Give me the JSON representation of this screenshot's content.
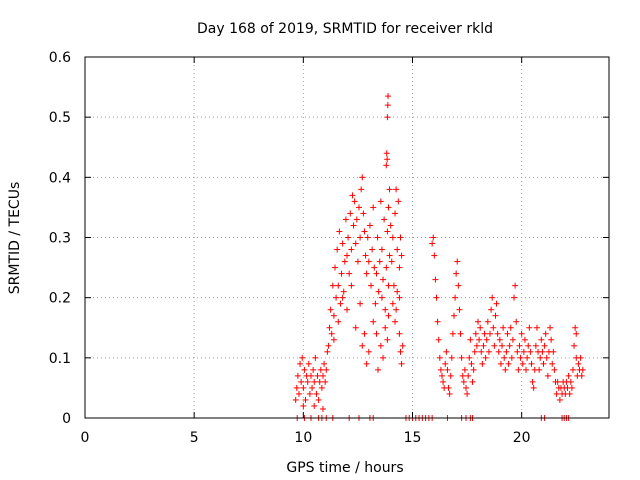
{
  "chart_data": {
    "type": "scatter",
    "title": "Day 168 of 2019, SRMTID for receiver rkld",
    "xlabel": "GPS time / hours",
    "ylabel": "SRMTID / TECUs",
    "xlim": [
      0,
      24
    ],
    "ylim": [
      0,
      0.6
    ],
    "x_ticks": [
      0,
      5,
      10,
      15,
      20
    ],
    "x_tick_labels": [
      "0",
      "5",
      "10",
      "15",
      "20"
    ],
    "y_ticks": [
      0,
      0.1,
      0.2,
      0.3,
      0.4,
      0.5,
      0.6
    ],
    "y_tick_labels": [
      "0",
      "0.1",
      "0.2",
      "0.3",
      "0.4",
      "0.5",
      "0.6"
    ],
    "grid": true,
    "marker": "+",
    "colors": {
      "series": "#ff0000",
      "axis": "#000000",
      "grid": "#a0a0a0"
    },
    "series": [
      {
        "name": "SRMTID",
        "points": [
          [
            9.65,
            0.03
          ],
          [
            9.7,
            0.05
          ],
          [
            9.75,
            0.07
          ],
          [
            9.8,
            0.04
          ],
          [
            9.85,
            0.09
          ],
          [
            9.9,
            0.06
          ],
          [
            9.95,
            0.1
          ],
          [
            10.0,
            0.05
          ],
          [
            10.05,
            0.08
          ],
          [
            10.1,
            0.03
          ],
          [
            10.15,
            0.07
          ],
          [
            10.2,
            0.06
          ],
          [
            10.25,
            0.09
          ],
          [
            10.3,
            0.04
          ],
          [
            10.35,
            0.07
          ],
          [
            10.4,
            0.05
          ],
          [
            10.45,
            0.08
          ],
          [
            10.5,
            0.06
          ],
          [
            10.55,
            0.1
          ],
          [
            10.6,
            0.04
          ],
          [
            10.65,
            0.07
          ],
          [
            10.7,
            0.03
          ],
          [
            10.75,
            0.06
          ],
          [
            10.8,
            0.08
          ],
          [
            10.85,
            0.05
          ],
          [
            10.9,
            0.07
          ],
          [
            10.95,
            0.09
          ],
          [
            11.0,
            0.06
          ],
          [
            11.05,
            0.08
          ],
          [
            11.1,
            0.11
          ],
          [
            10.0,
            0.02
          ],
          [
            10.5,
            0.02
          ],
          [
            10.9,
            0.015
          ],
          [
            11.15,
            0.12
          ],
          [
            11.2,
            0.15
          ],
          [
            11.25,
            0.18
          ],
          [
            11.3,
            0.14
          ],
          [
            11.35,
            0.22
          ],
          [
            11.4,
            0.17
          ],
          [
            11.45,
            0.25
          ],
          [
            11.5,
            0.2
          ],
          [
            11.55,
            0.28
          ],
          [
            11.6,
            0.22
          ],
          [
            11.65,
            0.31
          ],
          [
            11.7,
            0.19
          ],
          [
            11.75,
            0.24
          ],
          [
            11.8,
            0.29
          ],
          [
            11.85,
            0.21
          ],
          [
            11.9,
            0.26
          ],
          [
            11.95,
            0.33
          ],
          [
            12.0,
            0.27
          ],
          [
            12.05,
            0.3
          ],
          [
            12.1,
            0.24
          ],
          [
            12.15,
            0.34
          ],
          [
            12.2,
            0.28
          ],
          [
            12.25,
            0.37
          ],
          [
            12.3,
            0.32
          ],
          [
            12.35,
            0.36
          ],
          [
            12.4,
            0.29
          ],
          [
            12.45,
            0.33
          ],
          [
            12.5,
            0.26
          ],
          [
            12.55,
            0.35
          ],
          [
            12.6,
            0.3
          ],
          [
            12.65,
            0.38
          ],
          [
            12.7,
            0.4
          ],
          [
            12.75,
            0.34
          ],
          [
            12.8,
            0.31
          ],
          [
            12.85,
            0.27
          ],
          [
            12.9,
            0.24
          ],
          [
            12.95,
            0.3
          ],
          [
            11.4,
            0.13
          ],
          [
            11.6,
            0.16
          ],
          [
            11.8,
            0.2
          ],
          [
            12.0,
            0.18
          ],
          [
            12.2,
            0.22
          ],
          [
            12.4,
            0.15
          ],
          [
            12.6,
            0.19
          ],
          [
            12.8,
            0.14
          ],
          [
            12.9,
            0.09
          ],
          [
            12.7,
            0.12
          ],
          [
            13.0,
            0.26
          ],
          [
            13.05,
            0.32
          ],
          [
            13.1,
            0.22
          ],
          [
            13.15,
            0.28
          ],
          [
            13.2,
            0.35
          ],
          [
            13.25,
            0.25
          ],
          [
            13.3,
            0.19
          ],
          [
            13.35,
            0.24
          ],
          [
            13.4,
            0.3
          ],
          [
            13.45,
            0.21
          ],
          [
            13.5,
            0.26
          ],
          [
            13.55,
            0.36
          ],
          [
            13.6,
            0.28
          ],
          [
            13.65,
            0.23
          ],
          [
            13.7,
            0.33
          ],
          [
            13.75,
            0.18
          ],
          [
            13.8,
            0.25
          ],
          [
            13.85,
            0.31
          ],
          [
            13.9,
            0.22
          ],
          [
            13.95,
            0.27
          ],
          [
            13.42,
            0.08
          ],
          [
            13.55,
            0.12
          ],
          [
            13.65,
            0.1
          ],
          [
            13.75,
            0.15
          ],
          [
            13.85,
            0.13
          ],
          [
            13.2,
            0.16
          ],
          [
            13.0,
            0.11
          ],
          [
            13.35,
            0.14
          ],
          [
            13.9,
            0.17
          ],
          [
            13.6,
            0.2
          ],
          [
            13.8,
            0.42
          ],
          [
            13.82,
            0.44
          ],
          [
            13.85,
            0.5
          ],
          [
            13.87,
            0.52
          ],
          [
            13.88,
            0.535
          ],
          [
            13.84,
            0.43
          ],
          [
            13.9,
            0.35
          ],
          [
            13.95,
            0.38
          ],
          [
            14.0,
            0.32
          ],
          [
            14.05,
            0.26
          ],
          [
            14.1,
            0.3
          ],
          [
            14.15,
            0.22
          ],
          [
            14.2,
            0.34
          ],
          [
            14.25,
            0.38
          ],
          [
            14.3,
            0.28
          ],
          [
            14.35,
            0.36
          ],
          [
            14.4,
            0.25
          ],
          [
            14.45,
            0.3
          ],
          [
            14.5,
            0.27
          ],
          [
            14.1,
            0.19
          ],
          [
            14.2,
            0.16
          ],
          [
            14.3,
            0.21
          ],
          [
            14.4,
            0.14
          ],
          [
            14.45,
            0.11
          ],
          [
            14.5,
            0.09
          ],
          [
            14.55,
            0.12
          ],
          [
            14.4,
            0.2
          ],
          [
            14.25,
            0.18
          ],
          [
            15.9,
            0.29
          ],
          [
            15.95,
            0.3
          ],
          [
            16.0,
            0.27
          ],
          [
            16.05,
            0.23
          ],
          [
            16.1,
            0.2
          ],
          [
            16.15,
            0.16
          ],
          [
            16.2,
            0.13
          ],
          [
            16.25,
            0.1
          ],
          [
            16.3,
            0.08
          ],
          [
            16.35,
            0.07
          ],
          [
            16.4,
            0.06
          ],
          [
            16.45,
            0.05
          ],
          [
            16.5,
            0.09
          ],
          [
            16.55,
            0.11
          ],
          [
            16.6,
            0.08
          ],
          [
            16.65,
            0.05
          ],
          [
            16.7,
            0.04
          ],
          [
            16.75,
            0.07
          ],
          [
            16.8,
            0.1
          ],
          [
            16.85,
            0.14
          ],
          [
            16.9,
            0.17
          ],
          [
            16.95,
            0.2
          ],
          [
            17.0,
            0.24
          ],
          [
            17.05,
            0.26
          ],
          [
            17.1,
            0.22
          ],
          [
            17.15,
            0.18
          ],
          [
            17.2,
            0.14
          ],
          [
            17.25,
            0.1
          ],
          [
            17.3,
            0.07
          ],
          [
            17.35,
            0.06
          ],
          [
            17.4,
            0.08
          ],
          [
            17.45,
            0.05
          ],
          [
            17.5,
            0.04
          ],
          [
            17.55,
            0.07
          ],
          [
            17.6,
            0.1
          ],
          [
            17.65,
            0.13
          ],
          [
            17.7,
            0.09
          ],
          [
            17.75,
            0.06
          ],
          [
            17.8,
            0.08
          ],
          [
            17.85,
            0.11
          ],
          [
            17.9,
            0.14
          ],
          [
            17.95,
            0.12
          ],
          [
            18.0,
            0.16
          ],
          [
            18.05,
            0.13
          ],
          [
            18.1,
            0.15
          ],
          [
            18.15,
            0.11
          ],
          [
            18.2,
            0.09
          ],
          [
            18.25,
            0.12
          ],
          [
            18.3,
            0.14
          ],
          [
            18.35,
            0.1
          ],
          [
            18.4,
            0.13
          ],
          [
            18.45,
            0.16
          ],
          [
            18.5,
            0.11
          ],
          [
            18.55,
            0.14
          ],
          [
            18.6,
            0.18
          ],
          [
            18.65,
            0.2
          ],
          [
            18.7,
            0.15
          ],
          [
            18.75,
            0.12
          ],
          [
            18.8,
            0.17
          ],
          [
            18.85,
            0.19
          ],
          [
            18.9,
            0.14
          ],
          [
            18.95,
            0.11
          ],
          [
            19.0,
            0.13
          ],
          [
            19.05,
            0.09
          ],
          [
            19.1,
            0.12
          ],
          [
            19.15,
            0.15
          ],
          [
            19.2,
            0.1
          ],
          [
            19.25,
            0.08
          ],
          [
            19.3,
            0.11
          ],
          [
            19.35,
            0.14
          ],
          [
            19.4,
            0.09
          ],
          [
            19.45,
            0.12
          ],
          [
            19.5,
            0.15
          ],
          [
            19.55,
            0.1
          ],
          [
            19.6,
            0.13
          ],
          [
            19.65,
            0.2
          ],
          [
            19.7,
            0.22
          ],
          [
            19.75,
            0.16
          ],
          [
            19.8,
            0.11
          ],
          [
            19.85,
            0.08
          ],
          [
            19.9,
            0.12
          ],
          [
            19.95,
            0.1
          ],
          [
            20.0,
            0.14
          ],
          [
            20.05,
            0.09
          ],
          [
            20.1,
            0.11
          ],
          [
            20.15,
            0.13
          ],
          [
            20.2,
            0.08
          ],
          [
            20.25,
            0.1
          ],
          [
            20.3,
            0.12
          ],
          [
            20.35,
            0.15
          ],
          [
            20.4,
            0.11
          ],
          [
            20.45,
            0.09
          ],
          [
            20.5,
            0.06
          ],
          [
            20.55,
            0.05
          ],
          [
            20.6,
            0.08
          ],
          [
            20.65,
            0.12
          ],
          [
            20.7,
            0.15
          ],
          [
            20.75,
            0.11
          ],
          [
            20.8,
            0.08
          ],
          [
            20.85,
            0.1
          ],
          [
            20.9,
            0.13
          ],
          [
            20.95,
            0.11
          ],
          [
            21.0,
            0.09
          ],
          [
            21.05,
            0.12
          ],
          [
            21.1,
            0.14
          ],
          [
            21.15,
            0.1
          ],
          [
            21.2,
            0.07
          ],
          [
            21.25,
            0.11
          ],
          [
            21.3,
            0.15
          ],
          [
            21.35,
            0.13
          ],
          [
            21.4,
            0.09
          ],
          [
            21.45,
            0.11
          ],
          [
            21.5,
            0.08
          ],
          [
            21.55,
            0.06
          ],
          [
            21.6,
            0.04
          ],
          [
            21.65,
            0.06
          ],
          [
            21.7,
            0.05
          ],
          [
            21.75,
            0.03
          ],
          [
            21.8,
            0.05
          ],
          [
            21.85,
            0.04
          ],
          [
            21.9,
            0.06
          ],
          [
            21.95,
            0.05
          ],
          [
            22.0,
            0.04
          ],
          [
            22.05,
            0.06
          ],
          [
            22.1,
            0.05
          ],
          [
            22.15,
            0.07
          ],
          [
            22.2,
            0.04
          ],
          [
            22.25,
            0.06
          ],
          [
            22.3,
            0.05
          ],
          [
            22.35,
            0.08
          ],
          [
            22.4,
            0.12
          ],
          [
            22.45,
            0.15
          ],
          [
            22.5,
            0.1
          ],
          [
            22.55,
            0.07
          ],
          [
            22.6,
            0.09
          ],
          [
            22.65,
            0.08
          ],
          [
            22.7,
            0.1
          ],
          [
            22.75,
            0.07
          ],
          [
            22.8,
            0.08
          ],
          [
            22.5,
            0.14
          ],
          [
            9.72,
            0.0
          ],
          [
            10.05,
            0.0
          ],
          [
            10.35,
            0.0
          ],
          [
            10.7,
            0.0
          ],
          [
            10.85,
            0.0
          ],
          [
            11.05,
            0.0
          ],
          [
            11.35,
            0.0
          ],
          [
            12.1,
            0.0
          ],
          [
            12.55,
            0.0
          ],
          [
            13.05,
            0.0
          ],
          [
            13.2,
            0.0
          ],
          [
            14.7,
            0.0
          ],
          [
            14.85,
            0.0
          ],
          [
            15.0,
            0.0
          ],
          [
            15.15,
            0.0
          ],
          [
            15.3,
            0.0
          ],
          [
            15.45,
            0.0
          ],
          [
            15.6,
            0.0
          ],
          [
            15.75,
            0.0
          ],
          [
            15.9,
            0.0
          ],
          [
            16.6,
            0.0
          ],
          [
            17.25,
            0.0
          ],
          [
            17.45,
            0.0
          ],
          [
            17.65,
            0.0
          ],
          [
            17.75,
            0.0
          ],
          [
            20.9,
            0.0
          ],
          [
            21.05,
            0.0
          ],
          [
            21.85,
            0.0
          ],
          [
            21.95,
            0.0
          ],
          [
            22.05,
            0.0
          ],
          [
            22.15,
            0.0
          ]
        ]
      }
    ]
  }
}
